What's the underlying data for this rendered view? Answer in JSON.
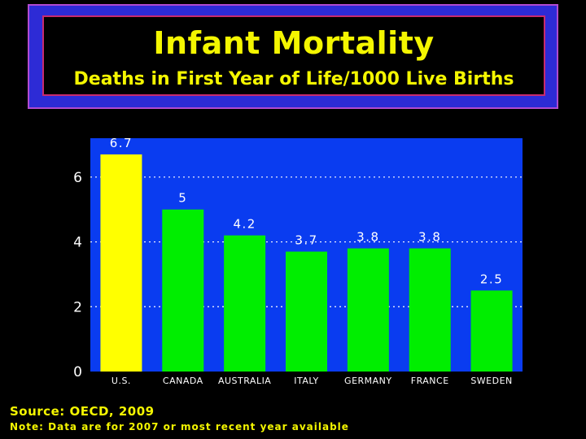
{
  "header": {
    "title": "Infant Mortality",
    "subtitle": "Deaths in First Year of Life/1000 Live Births"
  },
  "footer": {
    "source": "Source: OECD, 2009",
    "note": "Note: Data are for 2007 or most recent year available"
  },
  "colors": {
    "plot_background": "#0a3cf0",
    "highlight_bar": "#ffff00",
    "bar": "#00ee00",
    "axis_text": "#ffffff",
    "title_text": "#f4f600",
    "gridline": "#ffffff"
  },
  "chart_data": {
    "type": "bar",
    "title": "",
    "xlabel": "",
    "ylabel": "",
    "categories": [
      "U.S.",
      "CANADA",
      "AUSTRALIA",
      "ITALY",
      "GERMANY",
      "FRANCE",
      "SWEDEN"
    ],
    "values": [
      6.7,
      5,
      4.2,
      3.7,
      3.8,
      3.8,
      2.5
    ],
    "value_labels": [
      "6.7",
      "5",
      "4.2",
      "3.7",
      "3.8",
      "3.8",
      "2.5"
    ],
    "highlight_index": 0,
    "yticks": [
      0,
      2,
      4,
      6
    ],
    "ylim": [
      0,
      7.2
    ],
    "grid": "dotted horizontal at 2, 4, 6",
    "legend": "none"
  }
}
